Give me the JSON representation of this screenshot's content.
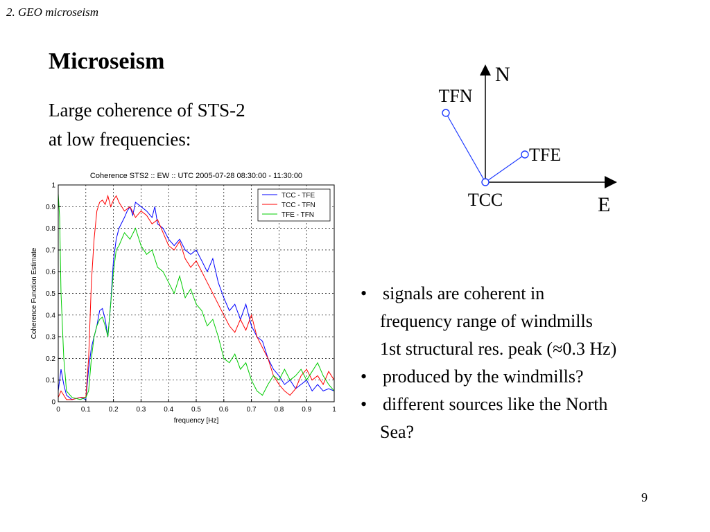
{
  "header": {
    "section": "2. GEO microseism"
  },
  "slide": {
    "title": "Microseism",
    "subtitle_lines": [
      "Large coherence of STS-2",
      "at low frequencies:"
    ],
    "bullets": [
      {
        "lines": [
          "signals are coherent in",
          "frequency range of windmills",
          "1st structural res. peak (≈0.3 Hz)"
        ]
      },
      {
        "lines": [
          "produced by the windmills?"
        ]
      },
      {
        "lines": [
          "different sources like the North",
          "Sea?"
        ]
      }
    ],
    "page_number": "9"
  },
  "diagram": {
    "north_label": "N",
    "east_label": "E",
    "stations": [
      {
        "name": "TFN",
        "x": -1,
        "y": 1
      },
      {
        "name": "TFE",
        "x": 1,
        "y": 0.4
      },
      {
        "name": "TCC",
        "x": 0,
        "y": 0
      }
    ]
  },
  "chart_data": {
    "type": "line",
    "title": "Coherence STS2 :: EW :: UTC 2005-07-28 08:30:00 - 11:30:00",
    "xlabel": "frequency [Hz]",
    "ylabel": "Coherence Function Estimate",
    "xlim": [
      0,
      1
    ],
    "ylim": [
      0,
      1
    ],
    "xticks": [
      0,
      0.1,
      0.2,
      0.3,
      0.4,
      0.5,
      0.6,
      0.7,
      0.8,
      0.9,
      1
    ],
    "yticks": [
      0,
      0.1,
      0.2,
      0.3,
      0.4,
      0.5,
      0.6,
      0.7,
      0.8,
      0.9,
      1
    ],
    "xtick_labels": [
      "0",
      "0.1",
      "0.2",
      "0.3",
      "0.4",
      "0.5",
      "0.6",
      "0.7",
      "0.8",
      "0.9",
      "1"
    ],
    "ytick_labels": [
      "0",
      "0.1",
      "0.2",
      "0.3",
      "0.4",
      "0.5",
      "0.6",
      "0.7",
      "0.8",
      "0.9",
      "1"
    ],
    "grid": true,
    "legend_position": "top-right",
    "series": [
      {
        "name": "TCC - TFE",
        "color": "#0000ff",
        "x": [
          0,
          0.01,
          0.02,
          0.03,
          0.05,
          0.08,
          0.1,
          0.11,
          0.12,
          0.13,
          0.14,
          0.15,
          0.16,
          0.17,
          0.18,
          0.19,
          0.2,
          0.21,
          0.22,
          0.24,
          0.25,
          0.26,
          0.27,
          0.28,
          0.3,
          0.32,
          0.34,
          0.35,
          0.36,
          0.38,
          0.4,
          0.42,
          0.44,
          0.46,
          0.48,
          0.5,
          0.52,
          0.54,
          0.56,
          0.58,
          0.6,
          0.62,
          0.64,
          0.66,
          0.68,
          0.7,
          0.72,
          0.74,
          0.76,
          0.78,
          0.8,
          0.82,
          0.84,
          0.86,
          0.88,
          0.9,
          0.92,
          0.94,
          0.96,
          0.98,
          1.0
        ],
        "y": [
          0.05,
          0.15,
          0.08,
          0.03,
          0.01,
          0.02,
          0.01,
          0.15,
          0.25,
          0.3,
          0.35,
          0.42,
          0.43,
          0.38,
          0.3,
          0.45,
          0.65,
          0.75,
          0.8,
          0.85,
          0.88,
          0.9,
          0.86,
          0.92,
          0.9,
          0.88,
          0.85,
          0.9,
          0.82,
          0.8,
          0.75,
          0.72,
          0.75,
          0.7,
          0.68,
          0.7,
          0.65,
          0.6,
          0.66,
          0.55,
          0.48,
          0.42,
          0.45,
          0.38,
          0.45,
          0.35,
          0.3,
          0.28,
          0.2,
          0.15,
          0.12,
          0.08,
          0.1,
          0.06,
          0.08,
          0.1,
          0.05,
          0.08,
          0.05,
          0.06,
          0.05
        ]
      },
      {
        "name": "TCC - TFN",
        "color": "#ff0000",
        "x": [
          0,
          0.01,
          0.02,
          0.03,
          0.05,
          0.08,
          0.1,
          0.11,
          0.12,
          0.13,
          0.14,
          0.15,
          0.16,
          0.17,
          0.18,
          0.19,
          0.2,
          0.21,
          0.22,
          0.24,
          0.26,
          0.28,
          0.3,
          0.32,
          0.34,
          0.36,
          0.38,
          0.4,
          0.42,
          0.44,
          0.46,
          0.48,
          0.5,
          0.52,
          0.54,
          0.56,
          0.58,
          0.6,
          0.62,
          0.64,
          0.66,
          0.68,
          0.7,
          0.72,
          0.74,
          0.76,
          0.78,
          0.8,
          0.82,
          0.84,
          0.86,
          0.88,
          0.9,
          0.92,
          0.94,
          0.96,
          0.98,
          1.0
        ],
        "y": [
          0.02,
          0.05,
          0.03,
          0.01,
          0.01,
          0.02,
          0.02,
          0.2,
          0.55,
          0.75,
          0.88,
          0.92,
          0.93,
          0.91,
          0.95,
          0.9,
          0.93,
          0.95,
          0.92,
          0.88,
          0.9,
          0.85,
          0.88,
          0.86,
          0.82,
          0.84,
          0.78,
          0.72,
          0.7,
          0.74,
          0.66,
          0.62,
          0.65,
          0.6,
          0.55,
          0.5,
          0.45,
          0.4,
          0.35,
          0.32,
          0.38,
          0.33,
          0.4,
          0.3,
          0.25,
          0.2,
          0.12,
          0.08,
          0.05,
          0.03,
          0.06,
          0.12,
          0.15,
          0.1,
          0.12,
          0.08,
          0.14,
          0.1
        ]
      },
      {
        "name": "TFE - TFN",
        "color": "#00cc00",
        "x": [
          0,
          0.005,
          0.01,
          0.02,
          0.03,
          0.05,
          0.08,
          0.1,
          0.11,
          0.12,
          0.13,
          0.14,
          0.15,
          0.16,
          0.17,
          0.18,
          0.19,
          0.2,
          0.21,
          0.22,
          0.24,
          0.26,
          0.28,
          0.3,
          0.32,
          0.34,
          0.36,
          0.38,
          0.4,
          0.42,
          0.44,
          0.46,
          0.48,
          0.5,
          0.52,
          0.54,
          0.56,
          0.58,
          0.6,
          0.62,
          0.64,
          0.66,
          0.68,
          0.7,
          0.72,
          0.74,
          0.76,
          0.78,
          0.8,
          0.82,
          0.84,
          0.86,
          0.88,
          0.9,
          0.92,
          0.94,
          0.96,
          0.98,
          1.0
        ],
        "y": [
          0.96,
          0.85,
          0.5,
          0.2,
          0.05,
          0.02,
          0.01,
          0.02,
          0.05,
          0.2,
          0.3,
          0.35,
          0.38,
          0.39,
          0.35,
          0.3,
          0.45,
          0.6,
          0.7,
          0.72,
          0.78,
          0.75,
          0.8,
          0.72,
          0.68,
          0.7,
          0.62,
          0.6,
          0.55,
          0.5,
          0.58,
          0.48,
          0.52,
          0.45,
          0.42,
          0.35,
          0.38,
          0.3,
          0.2,
          0.18,
          0.22,
          0.15,
          0.18,
          0.1,
          0.05,
          0.03,
          0.08,
          0.12,
          0.1,
          0.15,
          0.1,
          0.12,
          0.15,
          0.1,
          0.14,
          0.18,
          0.12,
          0.08,
          0.05
        ]
      }
    ]
  }
}
